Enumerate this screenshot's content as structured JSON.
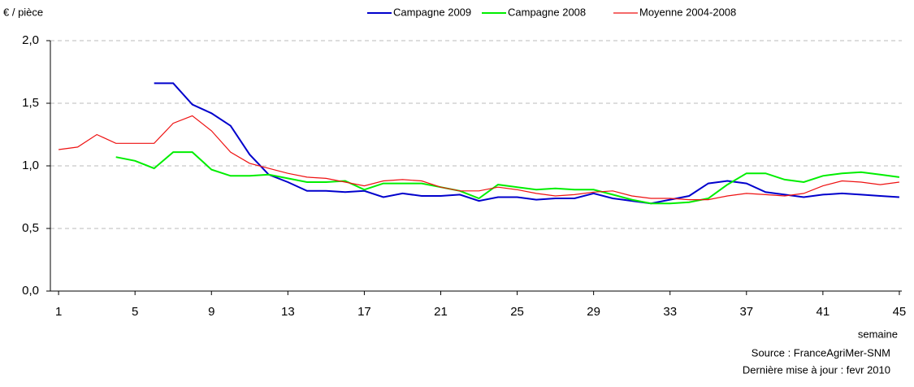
{
  "chart_data": {
    "type": "line",
    "y_label": "€ / pièce",
    "x_label": "semaine",
    "source": "Source : FranceAgriMer-SNM",
    "updated": "Dernière mise à jour : fevr 2010",
    "x": [
      1,
      2,
      3,
      4,
      5,
      6,
      7,
      8,
      9,
      10,
      11,
      12,
      13,
      14,
      15,
      16,
      17,
      18,
      19,
      20,
      21,
      22,
      23,
      24,
      25,
      26,
      27,
      28,
      29,
      30,
      31,
      32,
      33,
      34,
      35,
      36,
      37,
      38,
      39,
      40,
      41,
      42,
      43,
      44,
      45
    ],
    "series": [
      {
        "name": "Campagne 2009",
        "color": "#0000cc",
        "values": [
          null,
          null,
          null,
          null,
          null,
          1.66,
          1.66,
          1.49,
          1.42,
          1.32,
          1.09,
          0.93,
          0.87,
          0.8,
          0.8,
          0.79,
          0.8,
          0.75,
          0.78,
          0.76,
          0.76,
          0.77,
          0.72,
          0.75,
          0.75,
          0.73,
          0.74,
          0.74,
          0.78,
          0.74,
          0.72,
          0.7,
          0.73,
          0.76,
          0.86,
          0.88,
          0.86,
          0.79,
          0.77,
          0.75,
          0.77,
          0.78,
          0.77,
          0.76,
          0.75
        ]
      },
      {
        "name": "Campagne 2008",
        "color": "#00ee00",
        "values": [
          null,
          null,
          null,
          1.07,
          1.04,
          0.98,
          1.11,
          1.11,
          0.97,
          0.92,
          0.92,
          0.93,
          0.9,
          0.87,
          0.87,
          0.88,
          0.81,
          0.86,
          0.86,
          0.86,
          0.83,
          0.8,
          0.74,
          0.85,
          0.83,
          0.81,
          0.82,
          0.81,
          0.81,
          0.77,
          0.73,
          0.7,
          0.7,
          0.71,
          0.74,
          0.85,
          0.94,
          0.94,
          0.89,
          0.87,
          0.92,
          0.94,
          0.95,
          0.93,
          0.91
        ]
      },
      {
        "name": "Moyenne 2004-2008",
        "color": "#ee1111",
        "values": [
          1.13,
          1.15,
          1.25,
          1.18,
          1.18,
          1.18,
          1.34,
          1.4,
          1.28,
          1.11,
          1.02,
          0.98,
          0.94,
          0.91,
          0.9,
          0.87,
          0.84,
          0.88,
          0.89,
          0.88,
          0.83,
          0.8,
          0.8,
          0.83,
          0.81,
          0.78,
          0.76,
          0.77,
          0.79,
          0.8,
          0.76,
          0.74,
          0.74,
          0.73,
          0.73,
          0.76,
          0.78,
          0.77,
          0.76,
          0.78,
          0.84,
          0.88,
          0.87,
          0.85,
          0.87
        ]
      }
    ],
    "xlim": [
      0.57,
      45.13
    ],
    "xticks": [
      1,
      5,
      9,
      13,
      17,
      21,
      25,
      29,
      33,
      37,
      41,
      45
    ],
    "ylim": [
      0,
      2
    ],
    "yticks": [
      {
        "value": 0,
        "label": "0,0"
      },
      {
        "value": 0.5,
        "label": "0,5"
      },
      {
        "value": 1,
        "label": "1,0"
      },
      {
        "value": 1.5,
        "label": "1,5"
      },
      {
        "value": 2,
        "label": "2,0"
      }
    ],
    "grid": true
  }
}
